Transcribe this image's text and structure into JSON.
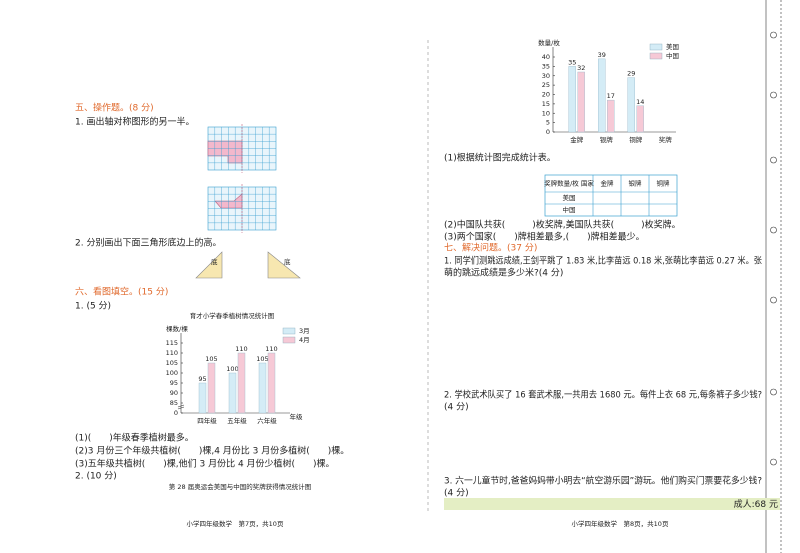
{
  "left": {
    "section5": {
      "heading": "五、操作题。(8 分)",
      "q1": "1. 画出轴对称图形的另一半。",
      "q2": "2. 分别画出下面三角形底边上的高。",
      "base_labels": [
        "底",
        "底"
      ]
    },
    "section6": {
      "heading": "六、看图填空。(15 分)",
      "q1": "1. (5 分)",
      "questions": [
        "(1)(　　)年级春季植树最多。",
        "(2)3 月份三个年级共植树(　　)棵,4 月份比 3 月份多植树(　　)棵。",
        "(3)五年级共植树(　　)棵,他们 3 月份比 4 月份少植树(　　)棵。"
      ],
      "q2": "2. (10 分)"
    },
    "footer": "小学四年级数学　第7页，共10页"
  },
  "right": {
    "q1": "(1)根据统计图完成统计表。",
    "table": {
      "header": [
        "奖牌数量/枚 国家",
        "金牌",
        "银牌",
        "铜牌"
      ],
      "rows": [
        [
          "美国"
        ],
        [
          "中国"
        ]
      ]
    },
    "q2": "(2)中国队共获(　　　)枚奖牌,美国队共获(　　　)枚奖牌。",
    "q3": "(3)两个国家(　　)牌相差最多,(　　)牌相差最少。",
    "section7": {
      "heading": "七、解决问题。(37 分)",
      "p1": [
        "1. 同学们测跳远成绩,王剑平跳了 1.83 米,比李苗远 0.18 米,张萌比李苗远 0.27 米。张",
        "萌的跳远成绩是多少米?(4 分)"
      ],
      "p2": [
        "2. 学校武术队买了 16 套武术服,一共用去 1680 元。每件上衣 68 元,每条裤子多少钱?",
        "(4 分)"
      ],
      "p3": [
        "3. 六一儿童节时,爸爸妈妈带小明去“航空游乐园”游玩。他们购买门票要花多少钱?",
        "(4 分)"
      ],
      "ticket": "成人:68 元"
    },
    "footer": "小学四年级数学　第8页，共10页"
  },
  "chart_data": [
    {
      "type": "bar",
      "title": "育才小学春季植树情况统计图",
      "y_label": "棵数/棵",
      "x_label": "年级",
      "categories": [
        "四年级",
        "五年级",
        "六年级"
      ],
      "series": [
        {
          "name": "3月",
          "color": "#d4ecf6",
          "values": [
            95,
            100,
            105
          ]
        },
        {
          "name": "4月",
          "color": "#f6c9d6",
          "values": [
            105,
            110,
            110
          ]
        }
      ],
      "ylim": [
        80,
        115
      ],
      "yticks": [
        0,
        85,
        90,
        95,
        100,
        105,
        110,
        115
      ],
      "axis_break": true,
      "legend": "top-right"
    },
    {
      "type": "bar",
      "title": "第 28 届奥运会美国与中国的奖牌获得情况统计图",
      "y_label": "数量/枚",
      "categories": [
        "金牌",
        "银牌",
        "铜牌",
        "奖牌"
      ],
      "series": [
        {
          "name": "美国",
          "color": "#d4ecf6",
          "values": [
            35,
            39,
            29,
            null
          ]
        },
        {
          "name": "中国",
          "color": "#f6c9d6",
          "values": [
            32,
            17,
            14,
            null
          ]
        }
      ],
      "ylim": [
        0,
        40
      ],
      "yticks": [
        0,
        5,
        10,
        15,
        20,
        25,
        30,
        35,
        40
      ],
      "legend": "top-right"
    }
  ]
}
